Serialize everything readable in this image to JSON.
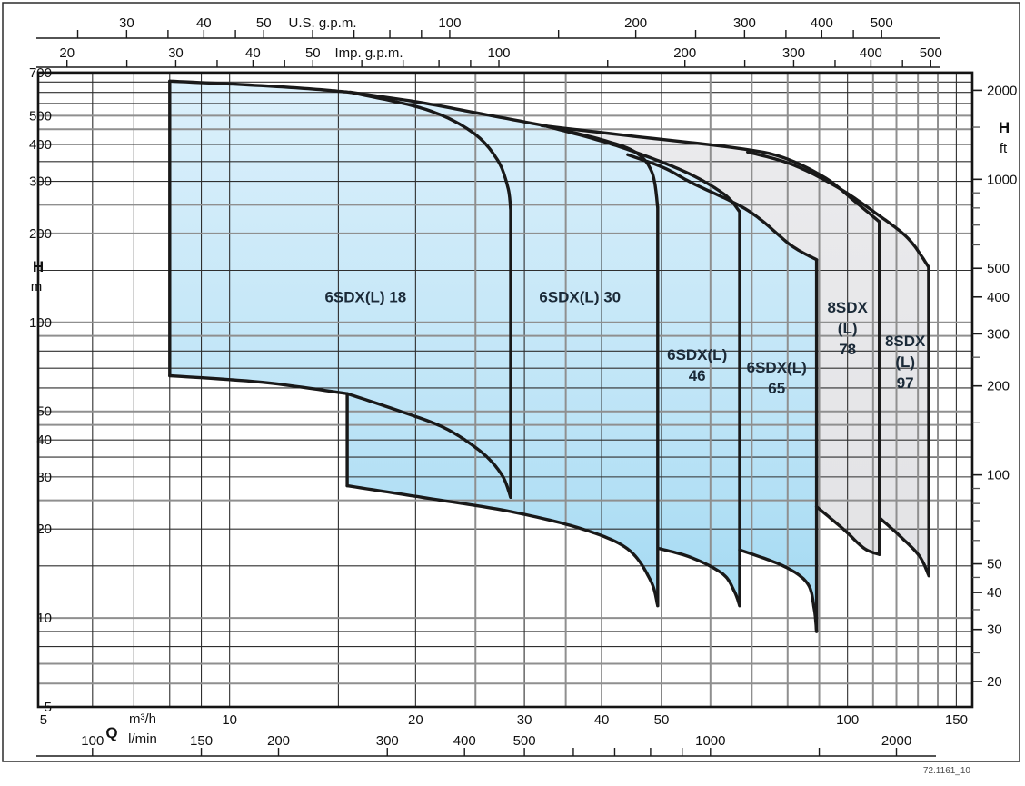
{
  "figure_code": "72.1161_10",
  "colors": {
    "blue_fill_top": "#dcf0fb",
    "blue_fill_mid": "#c0e5f7",
    "blue_fill_bottom": "#98d5f0",
    "gray_fill_top": "#ececee",
    "gray_fill_bottom": "#e0e0e3",
    "envelope_stroke": "#191919",
    "grid_dark": "#2f2f2f",
    "grid_gray": "#8f8f8f",
    "label_color": "#1b2a38"
  },
  "chart_data": {
    "type": "area",
    "description": "Submersible pump family head/flow range chart, log-log scales",
    "x_axis": {
      "quantity_label": "Q",
      "scales": [
        {
          "id": "us_gpm",
          "unit": "U.S. g.p.m.",
          "factor_from_m3h": 4.40287,
          "labeled": [
            30,
            40,
            50,
            100,
            200,
            300,
            400,
            500
          ],
          "minor": [
            25,
            35,
            45,
            60,
            70,
            80,
            90,
            150,
            250,
            350,
            450
          ]
        },
        {
          "id": "imp_gpm",
          "unit": "Imp. g.p.m.",
          "factor_from_m3h": 3.66615,
          "labeled": [
            20,
            30,
            40,
            50,
            100,
            200,
            300,
            400,
            500
          ],
          "minor": [
            25,
            35,
            45,
            60,
            70,
            80,
            90,
            150,
            250,
            350,
            450
          ]
        },
        {
          "id": "m3h",
          "unit": "m³/h",
          "factor_from_m3h": 1,
          "labeled": [
            5,
            10,
            20,
            30,
            40,
            50,
            100,
            150
          ],
          "minor": []
        },
        {
          "id": "lmin",
          "unit": "l/min",
          "factor_from_m3h": 16.6667,
          "labeled": [
            100,
            150,
            200,
            300,
            400,
            500,
            1000,
            2000
          ],
          "minor": [
            600,
            700,
            800,
            900,
            1500
          ]
        }
      ],
      "range_m3h": [
        4.9,
        159
      ]
    },
    "y_axis": {
      "quantity_label": "H",
      "scales": [
        {
          "id": "m",
          "unit": "m",
          "factor_from_m": 1,
          "labeled": [
            700,
            500,
            400,
            300,
            200,
            100,
            50,
            40,
            30,
            20,
            10,
            5
          ],
          "minor": []
        },
        {
          "id": "ft",
          "unit": "ft",
          "factor_from_m": 3.28084,
          "labeled": [
            2000,
            1000,
            500,
            400,
            300,
            200,
            100,
            50,
            40,
            30,
            20
          ],
          "minor": [
            1500,
            900,
            800,
            700,
            600,
            250,
            150,
            90,
            80,
            70,
            60,
            45,
            35,
            25
          ]
        }
      ],
      "range_m": [
        5,
        702
      ]
    },
    "grid": {
      "h_dark": [
        650,
        600,
        550,
        400,
        350,
        300,
        150,
        80,
        70,
        60,
        40,
        35,
        30,
        20,
        15,
        9,
        8
      ],
      "h_gray": [
        500,
        450,
        250,
        200,
        100,
        90,
        50,
        45,
        25,
        10,
        7,
        6
      ],
      "q_dark": [
        6,
        7,
        8,
        9,
        10,
        15,
        20,
        30,
        40,
        50,
        100,
        150
      ],
      "q_gray": [
        25,
        35,
        60,
        70,
        80,
        90,
        110,
        120,
        130,
        140
      ]
    },
    "models": [
      {
        "id": "6sdxl-18",
        "family": "blue",
        "label_lines": [
          "6SDX(L) 18"
        ],
        "label_anchor_qh": [
          16.6,
          122
        ],
        "segments": {
          "left": {
            "pts": [
              [
                8.0,
                66
              ],
              [
                8.0,
                655
              ]
            ],
            "smooth": false
          },
          "top": {
            "pts": [
              [
                8.0,
                655
              ],
              [
                11.0,
                634
              ],
              [
                13.6,
                616
              ],
              [
                15.7,
                600
              ]
            ],
            "smooth": true
          },
          "topright": {
            "pts": [
              [
                15.7,
                600
              ],
              [
                20.8,
                525
              ],
              [
                24.7,
                440
              ],
              [
                27.1,
                356
              ],
              [
                28.2,
                287
              ],
              [
                28.5,
                242
              ]
            ],
            "smooth": true
          },
          "right": {
            "pts": [
              [
                28.5,
                242
              ],
              [
                28.5,
                25.6
              ]
            ],
            "smooth": false
          },
          "botright": {
            "pts": [
              [
                28.5,
                25.6
              ],
              [
                27.6,
                30.4
              ],
              [
                25.6,
                36.3
              ],
              [
                22.3,
                43.9
              ],
              [
                18.8,
                50.2
              ],
              [
                15.5,
                57.4
              ]
            ],
            "smooth": true
          },
          "bottom": {
            "pts": [
              [
                15.5,
                57.4
              ],
              [
                11.3,
                62.7
              ],
              [
                8.0,
                66
              ]
            ],
            "smooth": true
          }
        },
        "fill_order": [
          "left",
          "top",
          "topright",
          "right",
          "botright",
          "bottom"
        ]
      },
      {
        "id": "6sdxl-30",
        "family": "blue",
        "label_lines": [
          "6SDX(L) 30"
        ],
        "label_anchor_qh": [
          36.9,
          122
        ],
        "segments": {
          "top": {
            "pts": [
              [
                15.7,
                600
              ],
              [
                20.0,
                558
              ],
              [
                25.0,
                512
              ],
              [
                32.3,
                463
              ]
            ],
            "smooth": true
          },
          "hook": {
            "pts": [
              [
                32.3,
                463
              ],
              [
                40.0,
                415
              ],
              [
                45.5,
                375
              ],
              [
                48.3,
                320
              ],
              [
                49.3,
                245
              ]
            ],
            "smooth": true
          },
          "right": {
            "pts": [
              [
                49.3,
                245
              ],
              [
                49.3,
                11.0
              ]
            ],
            "smooth": false
          },
          "bottom": {
            "pts": [
              [
                49.3,
                11.0
              ],
              [
                48.0,
                13.4
              ],
              [
                44.1,
                17.1
              ],
              [
                37.2,
                20.0
              ],
              [
                28.5,
                22.9
              ],
              [
                20.7,
                25.5
              ],
              [
                15.5,
                28.0
              ]
            ],
            "smooth": true
          },
          "notch": {
            "pts": [
              [
                15.5,
                28.0
              ],
              [
                15.5,
                57.4
              ]
            ],
            "smooth": false
          },
          "bridge": {
            "pts": [
              [
                15.5,
                57.4
              ],
              [
                15.7,
                600
              ]
            ],
            "smooth": false,
            "hidden": true
          }
        },
        "fill_order": [
          "top",
          "hook",
          "right",
          "bottom",
          "notch",
          "bridge"
        ]
      },
      {
        "id": "6sdxl-46",
        "family": "blue",
        "label_lines": [
          "6SDX(L)",
          "46"
        ],
        "label_anchor_qh": [
          57.1,
          71.8
        ],
        "segments": {
          "top": {
            "pts": [
              [
                32.3,
                463
              ],
              [
                39.9,
                411
              ],
              [
                46.9,
                367
              ],
              [
                55.5,
                318
              ],
              [
                63.2,
                271
              ],
              [
                66.9,
                237
              ]
            ],
            "smooth": true
          },
          "right": {
            "pts": [
              [
                66.9,
                237
              ],
              [
                66.9,
                11.0
              ]
            ],
            "smooth": false
          },
          "bottom": {
            "pts": [
              [
                66.9,
                11.0
              ],
              [
                65.6,
                12.3
              ],
              [
                62.8,
                14.1
              ],
              [
                55.9,
                16.0
              ],
              [
                49.4,
                17.2
              ]
            ],
            "smooth": true
          },
          "bridgeA": {
            "pts": [
              [
                49.4,
                17.2
              ],
              [
                49.3,
                245
              ]
            ],
            "smooth": false,
            "hidden": true
          },
          "bridgeB": {
            "pts": [
              [
                49.3,
                245
              ],
              [
                32.3,
                463
              ]
            ],
            "smooth": false,
            "hidden": true
          }
        },
        "fill_order": [
          "top",
          "right",
          "bottom",
          "bridgeA",
          "bridgeB"
        ]
      },
      {
        "id": "6sdxl-65",
        "family": "blue",
        "label_lines": [
          "6SDX(L)",
          "65"
        ],
        "label_anchor_qh": [
          76.8,
          65.0
        ],
        "segments": {
          "top": {
            "pts": [
              [
                44.1,
                369
              ],
              [
                50.5,
                333
              ],
              [
                55.9,
                297
              ],
              [
                66.5,
                250
              ],
              [
                72.7,
                221
              ],
              [
                81.1,
                182
              ],
              [
                89.1,
                163
              ]
            ],
            "smooth": true
          },
          "right": {
            "pts": [
              [
                89.1,
                163
              ],
              [
                89.1,
                9.0
              ]
            ],
            "smooth": false
          },
          "bottom": {
            "pts": [
              [
                89.1,
                9.0
              ],
              [
                88.3,
                10.8
              ],
              [
                86.1,
                13.1
              ],
              [
                78.7,
                15.0
              ],
              [
                66.9,
                17.0
              ]
            ],
            "smooth": true
          },
          "bridgeA": {
            "pts": [
              [
                66.9,
                17.0
              ],
              [
                66.9,
                237
              ]
            ],
            "smooth": false,
            "hidden": true
          },
          "bridgeB": {
            "pts": [
              [
                66.9,
                237
              ],
              [
                44.1,
                369
              ]
            ],
            "smooth": false,
            "hidden": true
          }
        },
        "fill_order": [
          "top",
          "right",
          "bottom",
          "bridgeA",
          "bridgeB"
        ]
      },
      {
        "id": "8sdxl-78",
        "family": "gray",
        "label_lines": [
          "8SDX",
          "(L)",
          "78"
        ],
        "label_anchor_qh": [
          100,
          95.7
        ],
        "segments": {
          "top": {
            "pts": [
              [
                32.0,
                463
              ],
              [
                45.6,
                425
              ],
              [
                66.5,
                388
              ],
              [
                78.7,
                361
              ],
              [
                92.1,
                308
              ],
              [
                102.9,
                256
              ],
              [
                112.6,
                219
              ]
            ],
            "smooth": true
          },
          "right": {
            "pts": [
              [
                112.6,
                219
              ],
              [
                112.6,
                16.4
              ]
            ],
            "smooth": false
          },
          "bottom": {
            "pts": [
              [
                112.6,
                16.4
              ],
              [
                106.4,
                17.2
              ],
              [
                98.4,
                20.0
              ],
              [
                89.1,
                23.8
              ]
            ],
            "smooth": true
          },
          "bridgeA": {
            "pts": [
              [
                89.1,
                23.8
              ],
              [
                32.0,
                24.0
              ]
            ],
            "smooth": false,
            "hidden": true
          },
          "bridgeB": {
            "pts": [
              [
                32.0,
                24.0
              ],
              [
                32.0,
                463
              ]
            ],
            "smooth": false,
            "hidden": true
          }
        },
        "fill_order": [
          "top",
          "right",
          "bottom",
          "bridgeA",
          "bridgeB"
        ]
      },
      {
        "id": "8sdxl-97",
        "family": "gray",
        "label_lines": [
          "8SDX",
          "(L)",
          "97"
        ],
        "label_anchor_qh": [
          124,
          73.6
        ],
        "segments": {
          "top": {
            "pts": [
              [
                68.9,
                377
              ],
              [
                81.1,
                343
              ],
              [
                95.9,
                288
              ],
              [
                111.8,
                232
              ],
              [
                125.4,
                192
              ],
              [
                135.3,
                154
              ]
            ],
            "smooth": true
          },
          "right": {
            "pts": [
              [
                135.3,
                154
              ],
              [
                135.4,
                13.9
              ]
            ],
            "smooth": false
          },
          "bottom": {
            "pts": [
              [
                135.4,
                13.9
              ],
              [
                130.7,
                16.2
              ],
              [
                122.3,
                18.7
              ],
              [
                113.0,
                21.7
              ]
            ],
            "smooth": true
          },
          "bridgeA": {
            "pts": [
              [
                113.0,
                21.7
              ],
              [
                112.6,
                219
              ]
            ],
            "smooth": false,
            "hidden": true
          },
          "bridgeB": {
            "pts": [
              [
                112.6,
                219
              ],
              [
                68.9,
                377
              ]
            ],
            "smooth": false,
            "hidden": true
          }
        },
        "fill_order": [
          "top",
          "right",
          "bottom",
          "bridgeA",
          "bridgeB"
        ]
      }
    ]
  }
}
